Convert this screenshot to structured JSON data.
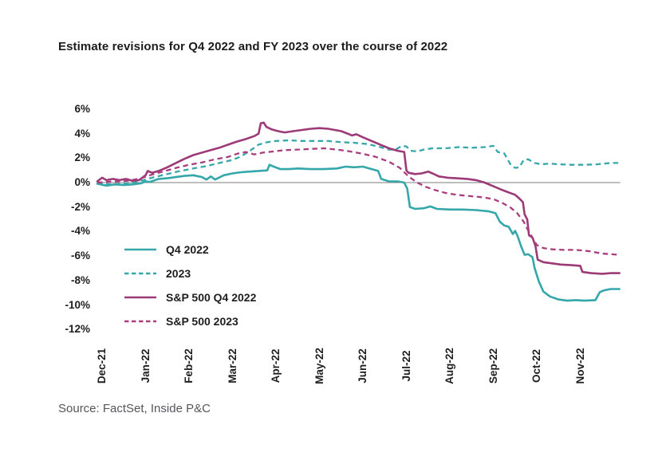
{
  "title": "Estimate revisions for Q4 2022 and FY 2023 over the course of 2022",
  "source": "Source: FactSet, Inside P&C",
  "colors": {
    "teal": "#35a7aa",
    "purple": "#9c3a78",
    "purple_dashed": "#aa3d7f",
    "zero_line": "#7d7d7d",
    "text": "#1e1e1e",
    "source_text": "#54565a"
  },
  "chart_data": {
    "type": "line",
    "title": "Estimate revisions for Q4 2022 and FY 2023 over the course of 2022",
    "xlabel": "",
    "ylabel": "",
    "x_unit": "months (0 = Dec-21 tick, fractional = within month)",
    "y_unit": "%",
    "ylim": [
      -12,
      6
    ],
    "grid": false,
    "zero_line": true,
    "legend_position": "inside-lower-left",
    "categories": [
      "Dec-21",
      "Jan-22",
      "Feb-22",
      "Mar-22",
      "Apr-22",
      "May-22",
      "Jun-22",
      "Jul-22",
      "Aug-22",
      "Sep-22",
      "Oct-22",
      "Nov-22"
    ],
    "y_ticks": [
      {
        "v": 6,
        "label": "6%"
      },
      {
        "v": 4,
        "label": "4%"
      },
      {
        "v": 2,
        "label": "2%"
      },
      {
        "v": 0,
        "label": "0%"
      },
      {
        "v": -2,
        "label": "-2%"
      },
      {
        "v": -4,
        "label": "-4%"
      },
      {
        "v": -6,
        "label": "-6%"
      },
      {
        "v": -8,
        "label": "-8%"
      },
      {
        "v": -10,
        "label": "-10%"
      },
      {
        "v": -12,
        "label": "-12%"
      }
    ],
    "series": [
      {
        "name": "Q4 2022",
        "color": "#35a7aa",
        "dash": false,
        "points": [
          [
            -0.11,
            -0.1
          ],
          [
            0.1,
            -0.25
          ],
          [
            0.3,
            -0.15
          ],
          [
            0.5,
            -0.2
          ],
          [
            0.7,
            -0.15
          ],
          [
            0.9,
            -0.05
          ],
          [
            1.0,
            0.1
          ],
          [
            1.1,
            0.05
          ],
          [
            1.3,
            0.3
          ],
          [
            1.5,
            0.35
          ],
          [
            1.7,
            0.45
          ],
          [
            1.9,
            0.55
          ],
          [
            2.1,
            0.6
          ],
          [
            2.3,
            0.45
          ],
          [
            2.4,
            0.25
          ],
          [
            2.5,
            0.5
          ],
          [
            2.6,
            0.25
          ],
          [
            2.8,
            0.6
          ],
          [
            3.0,
            0.75
          ],
          [
            3.2,
            0.85
          ],
          [
            3.4,
            0.9
          ],
          [
            3.6,
            0.95
          ],
          [
            3.8,
            1.0
          ],
          [
            3.85,
            1.45
          ],
          [
            3.95,
            1.3
          ],
          [
            4.1,
            1.1
          ],
          [
            4.3,
            1.1
          ],
          [
            4.5,
            1.15
          ],
          [
            4.8,
            1.1
          ],
          [
            5.1,
            1.1
          ],
          [
            5.4,
            1.15
          ],
          [
            5.6,
            1.3
          ],
          [
            5.8,
            1.25
          ],
          [
            6.0,
            1.3
          ],
          [
            6.2,
            1.1
          ],
          [
            6.35,
            0.95
          ],
          [
            6.42,
            0.3
          ],
          [
            6.6,
            0.1
          ],
          [
            6.8,
            0.1
          ],
          [
            6.95,
            0.0
          ],
          [
            7.02,
            -0.5
          ],
          [
            7.08,
            -2.0
          ],
          [
            7.2,
            -2.15
          ],
          [
            7.4,
            -2.1
          ],
          [
            7.55,
            -1.95
          ],
          [
            7.7,
            -2.15
          ],
          [
            8.0,
            -2.2
          ],
          [
            8.3,
            -2.2
          ],
          [
            8.6,
            -2.25
          ],
          [
            8.9,
            -2.35
          ],
          [
            9.05,
            -2.5
          ],
          [
            9.15,
            -3.2
          ],
          [
            9.25,
            -3.5
          ],
          [
            9.35,
            -3.6
          ],
          [
            9.45,
            -4.2
          ],
          [
            9.5,
            -3.95
          ],
          [
            9.55,
            -4.3
          ],
          [
            9.65,
            -5.3
          ],
          [
            9.72,
            -5.9
          ],
          [
            9.8,
            -5.85
          ],
          [
            9.9,
            -6.1
          ],
          [
            9.95,
            -7.0
          ],
          [
            10.05,
            -8.1
          ],
          [
            10.15,
            -8.9
          ],
          [
            10.3,
            -9.3
          ],
          [
            10.5,
            -9.55
          ],
          [
            10.7,
            -9.65
          ],
          [
            10.9,
            -9.6
          ],
          [
            11.1,
            -9.65
          ],
          [
            11.35,
            -9.6
          ],
          [
            11.45,
            -8.95
          ],
          [
            11.55,
            -8.8
          ],
          [
            11.7,
            -8.7
          ],
          [
            11.9,
            -8.7
          ]
        ]
      },
      {
        "name": "2023",
        "color": "#35a7aa",
        "dash": true,
        "points": [
          [
            -0.11,
            -0.05
          ],
          [
            0.2,
            -0.15
          ],
          [
            0.5,
            -0.1
          ],
          [
            0.8,
            0.05
          ],
          [
            1.0,
            0.25
          ],
          [
            1.2,
            0.45
          ],
          [
            1.5,
            0.7
          ],
          [
            1.8,
            0.95
          ],
          [
            2.1,
            1.15
          ],
          [
            2.4,
            1.35
          ],
          [
            2.7,
            1.6
          ],
          [
            3.0,
            1.85
          ],
          [
            3.2,
            2.15
          ],
          [
            3.4,
            2.6
          ],
          [
            3.6,
            3.1
          ],
          [
            3.8,
            3.3
          ],
          [
            4.0,
            3.4
          ],
          [
            4.3,
            3.45
          ],
          [
            4.6,
            3.4
          ],
          [
            4.9,
            3.4
          ],
          [
            5.2,
            3.4
          ],
          [
            5.5,
            3.3
          ],
          [
            5.8,
            3.25
          ],
          [
            6.1,
            3.15
          ],
          [
            6.4,
            2.9
          ],
          [
            6.6,
            2.7
          ],
          [
            6.75,
            2.7
          ],
          [
            6.9,
            3.0
          ],
          [
            7.0,
            2.95
          ],
          [
            7.1,
            2.6
          ],
          [
            7.25,
            2.55
          ],
          [
            7.4,
            2.7
          ],
          [
            7.6,
            2.8
          ],
          [
            7.9,
            2.8
          ],
          [
            8.2,
            2.9
          ],
          [
            8.5,
            2.85
          ],
          [
            8.8,
            2.9
          ],
          [
            9.0,
            3.0
          ],
          [
            9.1,
            2.5
          ],
          [
            9.25,
            2.4
          ],
          [
            9.4,
            1.45
          ],
          [
            9.5,
            1.2
          ],
          [
            9.6,
            1.25
          ],
          [
            9.7,
            1.85
          ],
          [
            9.8,
            1.9
          ],
          [
            9.95,
            1.6
          ],
          [
            10.1,
            1.5
          ],
          [
            10.3,
            1.55
          ],
          [
            10.5,
            1.5
          ],
          [
            10.8,
            1.45
          ],
          [
            11.1,
            1.45
          ],
          [
            11.4,
            1.5
          ],
          [
            11.7,
            1.6
          ],
          [
            11.9,
            1.6
          ]
        ]
      },
      {
        "name": "S&P 500 Q4 2022",
        "color": "#9c3a78",
        "dash": false,
        "points": [
          [
            -0.11,
            0.1
          ],
          [
            0.0,
            0.4
          ],
          [
            0.1,
            0.2
          ],
          [
            0.25,
            0.3
          ],
          [
            0.4,
            0.2
          ],
          [
            0.55,
            0.3
          ],
          [
            0.7,
            0.15
          ],
          [
            0.85,
            0.2
          ],
          [
            1.0,
            0.6
          ],
          [
            1.05,
            0.95
          ],
          [
            1.15,
            0.8
          ],
          [
            1.3,
            0.95
          ],
          [
            1.5,
            1.25
          ],
          [
            1.7,
            1.6
          ],
          [
            1.9,
            1.95
          ],
          [
            2.1,
            2.25
          ],
          [
            2.3,
            2.45
          ],
          [
            2.5,
            2.65
          ],
          [
            2.7,
            2.85
          ],
          [
            2.9,
            3.1
          ],
          [
            3.1,
            3.35
          ],
          [
            3.3,
            3.55
          ],
          [
            3.5,
            3.8
          ],
          [
            3.6,
            4.0
          ],
          [
            3.65,
            4.85
          ],
          [
            3.72,
            4.9
          ],
          [
            3.78,
            4.55
          ],
          [
            3.9,
            4.35
          ],
          [
            4.05,
            4.2
          ],
          [
            4.2,
            4.1
          ],
          [
            4.4,
            4.2
          ],
          [
            4.6,
            4.3
          ],
          [
            4.8,
            4.4
          ],
          [
            5.0,
            4.45
          ],
          [
            5.2,
            4.4
          ],
          [
            5.35,
            4.3
          ],
          [
            5.5,
            4.2
          ],
          [
            5.65,
            4.0
          ],
          [
            5.75,
            3.85
          ],
          [
            5.85,
            3.95
          ],
          [
            6.0,
            3.7
          ],
          [
            6.2,
            3.4
          ],
          [
            6.4,
            3.1
          ],
          [
            6.6,
            2.8
          ],
          [
            6.8,
            2.6
          ],
          [
            6.95,
            2.5
          ],
          [
            7.0,
            1.0
          ],
          [
            7.05,
            0.8
          ],
          [
            7.2,
            0.7
          ],
          [
            7.35,
            0.75
          ],
          [
            7.5,
            0.9
          ],
          [
            7.6,
            0.75
          ],
          [
            7.75,
            0.5
          ],
          [
            7.95,
            0.4
          ],
          [
            8.15,
            0.35
          ],
          [
            8.4,
            0.3
          ],
          [
            8.6,
            0.2
          ],
          [
            8.8,
            0.0
          ],
          [
            9.0,
            -0.3
          ],
          [
            9.2,
            -0.6
          ],
          [
            9.35,
            -0.8
          ],
          [
            9.5,
            -1.0
          ],
          [
            9.6,
            -1.3
          ],
          [
            9.68,
            -1.6
          ],
          [
            9.72,
            -2.6
          ],
          [
            9.78,
            -3.0
          ],
          [
            9.82,
            -4.3
          ],
          [
            9.9,
            -4.5
          ],
          [
            9.97,
            -5.2
          ],
          [
            10.02,
            -6.3
          ],
          [
            10.15,
            -6.5
          ],
          [
            10.35,
            -6.6
          ],
          [
            10.55,
            -6.7
          ],
          [
            10.8,
            -6.75
          ],
          [
            11.0,
            -6.8
          ],
          [
            11.05,
            -7.3
          ],
          [
            11.25,
            -7.4
          ],
          [
            11.5,
            -7.45
          ],
          [
            11.7,
            -7.4
          ],
          [
            11.9,
            -7.4
          ]
        ]
      },
      {
        "name": "S&P 500 2023",
        "color": "#aa3d7f",
        "dash": true,
        "points": [
          [
            -0.11,
            0.0
          ],
          [
            0.3,
            0.1
          ],
          [
            0.6,
            0.15
          ],
          [
            0.9,
            0.35
          ],
          [
            1.1,
            0.6
          ],
          [
            1.4,
            0.9
          ],
          [
            1.7,
            1.2
          ],
          [
            2.0,
            1.45
          ],
          [
            2.3,
            1.65
          ],
          [
            2.6,
            1.9
          ],
          [
            2.9,
            2.1
          ],
          [
            3.1,
            2.35
          ],
          [
            3.3,
            2.5
          ],
          [
            3.5,
            2.3
          ],
          [
            3.7,
            2.45
          ],
          [
            3.95,
            2.55
          ],
          [
            4.2,
            2.65
          ],
          [
            4.5,
            2.7
          ],
          [
            4.8,
            2.75
          ],
          [
            5.1,
            2.8
          ],
          [
            5.4,
            2.7
          ],
          [
            5.7,
            2.55
          ],
          [
            6.0,
            2.35
          ],
          [
            6.3,
            2.1
          ],
          [
            6.6,
            1.7
          ],
          [
            6.85,
            1.2
          ],
          [
            7.05,
            0.5
          ],
          [
            7.25,
            0.0
          ],
          [
            7.45,
            -0.35
          ],
          [
            7.65,
            -0.6
          ],
          [
            7.9,
            -0.85
          ],
          [
            8.15,
            -1.0
          ],
          [
            8.45,
            -1.1
          ],
          [
            8.75,
            -1.2
          ],
          [
            9.0,
            -1.35
          ],
          [
            9.2,
            -1.65
          ],
          [
            9.4,
            -2.05
          ],
          [
            9.55,
            -2.5
          ],
          [
            9.7,
            -3.2
          ],
          [
            9.8,
            -3.9
          ],
          [
            9.9,
            -4.5
          ],
          [
            10.0,
            -5.1
          ],
          [
            10.15,
            -5.35
          ],
          [
            10.35,
            -5.45
          ],
          [
            10.6,
            -5.5
          ],
          [
            10.9,
            -5.5
          ],
          [
            11.2,
            -5.6
          ],
          [
            11.5,
            -5.8
          ],
          [
            11.9,
            -5.9
          ]
        ]
      }
    ]
  }
}
